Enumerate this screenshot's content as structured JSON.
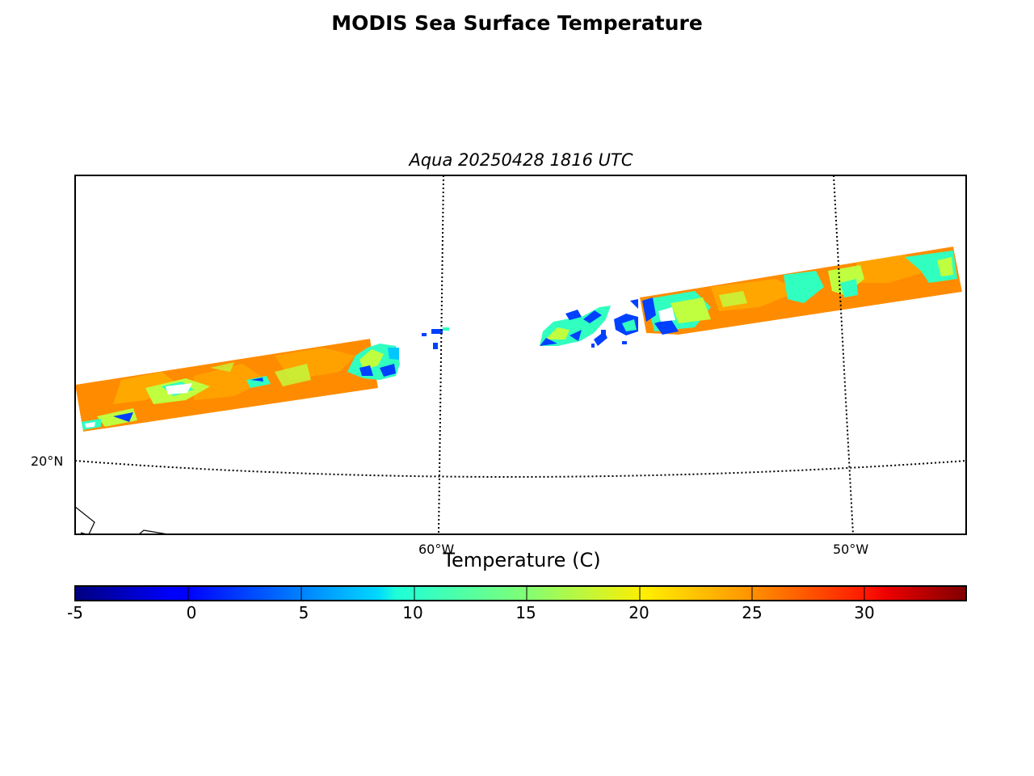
{
  "title": "MODIS Sea Surface Temperature",
  "subtitle": "Aqua 20250428 1816 UTC",
  "map": {
    "lat_labels": [
      "20°N"
    ],
    "lon_labels": [
      "60°W",
      "50°W"
    ],
    "graticule_style": "dotted",
    "land_outline": "black thin line (coastline, bottom-left)"
  },
  "colorbar": {
    "label": "Temperature (C)",
    "colormap": "jet",
    "range": [
      -5,
      34
    ],
    "ticks": [
      "-5",
      "0",
      "5",
      "10",
      "15",
      "20",
      "25",
      "30"
    ],
    "tick_values": [
      -5,
      0,
      5,
      10,
      15,
      20,
      25,
      30
    ]
  },
  "colors": {
    "dominant_sst": "#ff8c00",
    "warm_patch": "#ffb000",
    "mid_patch": "#bfff40",
    "cool_patch": "#30ffc0",
    "cold_patch": "#0040ff"
  }
}
